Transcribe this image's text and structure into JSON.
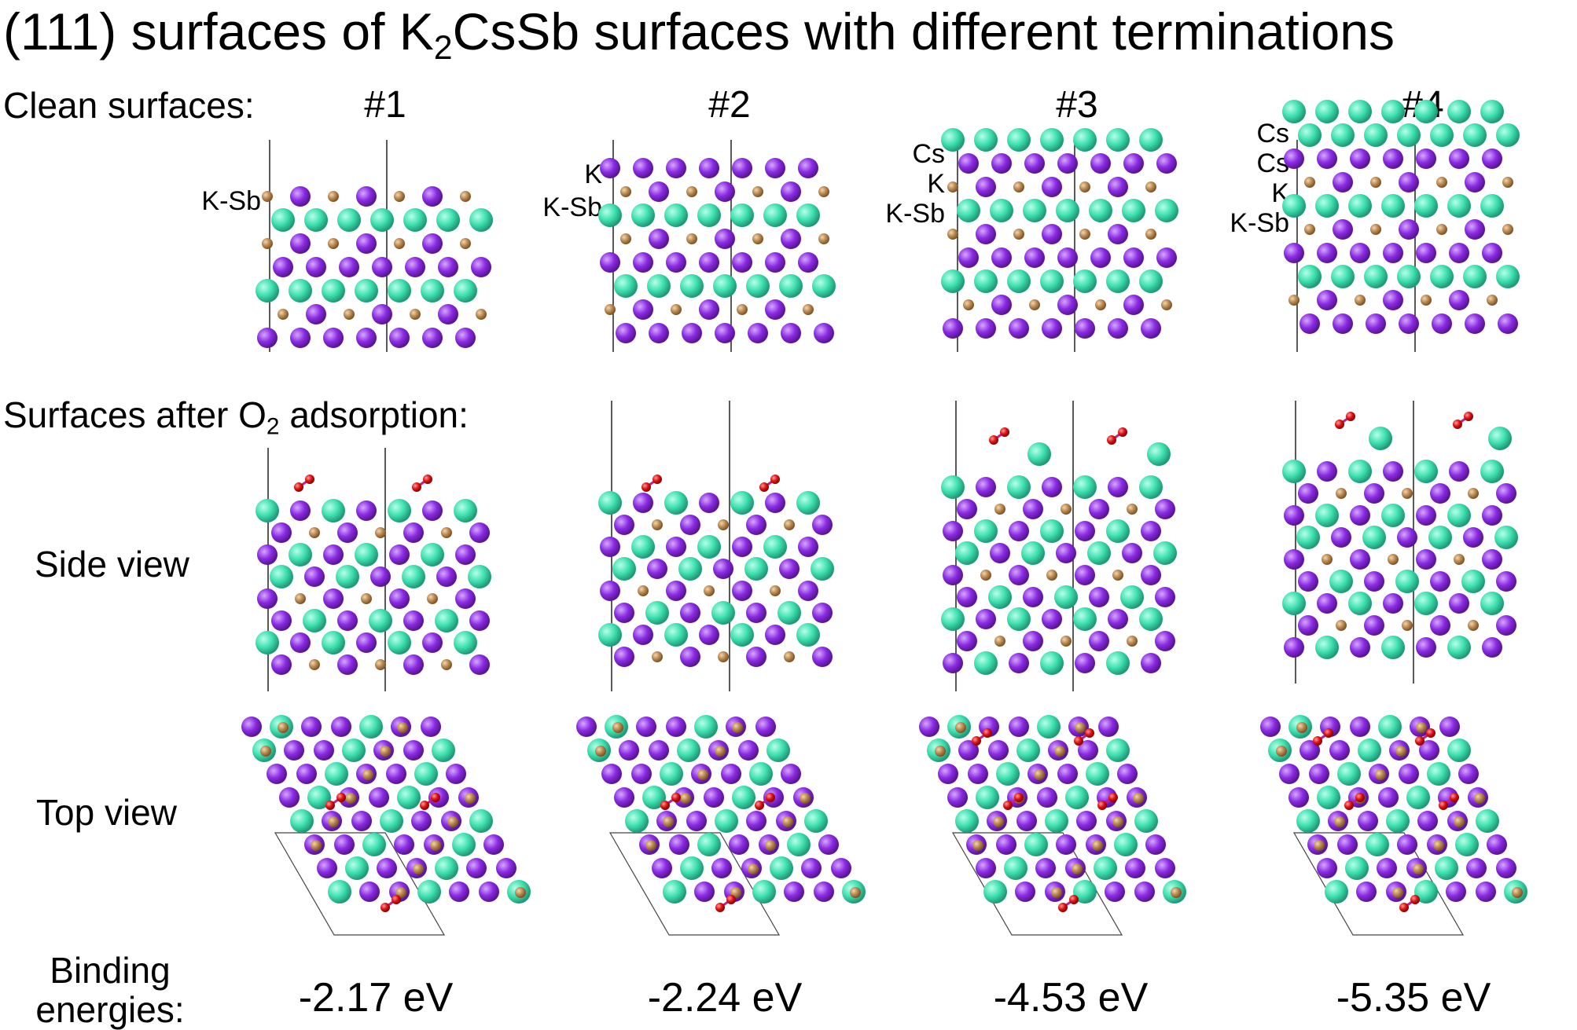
{
  "title": {
    "prefix": "(111) surfaces of K",
    "sub": "2",
    "suffix": "CsSb surfaces with different terminations"
  },
  "sections": {
    "clean": "Clean surfaces:",
    "after": {
      "prefix": "Surfaces after O",
      "sub": "2",
      "suffix": " adsorption:"
    }
  },
  "row_labels": {
    "side": "Side view",
    "top": "Top view"
  },
  "binding_label": {
    "line1": "Binding",
    "line2": "energies:"
  },
  "columns": [
    {
      "id": "#1",
      "terminations": [
        "K-Sb"
      ],
      "energy": "-2.17 eV"
    },
    {
      "id": "#2",
      "terminations": [
        "K",
        "K-Sb"
      ],
      "energy": "-2.24 eV"
    },
    {
      "id": "#3",
      "terminations": [
        "Cs",
        "K",
        "K-Sb"
      ],
      "energy": "-4.53 eV"
    },
    {
      "id": "#4",
      "terminations": [
        "Cs",
        "Cs",
        "K",
        "K-Sb"
      ],
      "energy": "-5.35 eV"
    }
  ],
  "colors": {
    "cs": "#3fe0b0",
    "k": "#8a2be2",
    "sb": "#b8874f",
    "o": "#dd1111"
  }
}
